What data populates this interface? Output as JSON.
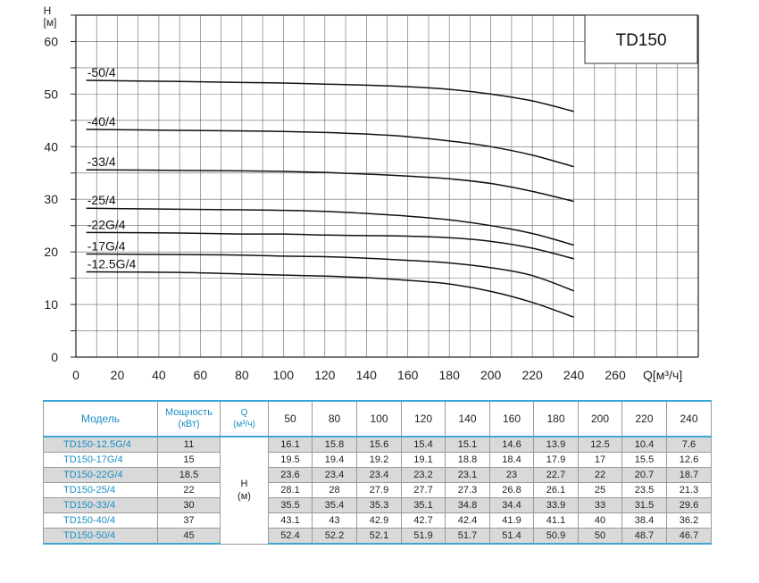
{
  "chart_data": {
    "type": "line",
    "title": "TD150",
    "y_axis_label_line1": "H",
    "y_axis_label_line2": "[м]",
    "x_axis_label": "Q[м³/ч]",
    "x_ticks": [
      0,
      20,
      40,
      60,
      80,
      100,
      120,
      140,
      160,
      180,
      200,
      220,
      240,
      260
    ],
    "y_ticks": [
      0,
      10,
      20,
      30,
      40,
      50,
      60
    ],
    "xlim": [
      0,
      300
    ],
    "ylim": [
      0,
      65
    ],
    "grid": true,
    "series": [
      {
        "name": "-50/4",
        "x": [
          50,
          80,
          100,
          120,
          140,
          160,
          180,
          200,
          220,
          240
        ],
        "y": [
          52.4,
          52.2,
          52.1,
          51.9,
          51.7,
          51.4,
          50.9,
          50,
          48.7,
          46.7
        ],
        "start_y": 52.6
      },
      {
        "name": "-40/4",
        "x": [
          50,
          80,
          100,
          120,
          140,
          160,
          180,
          200,
          220,
          240
        ],
        "y": [
          43.1,
          43,
          42.9,
          42.7,
          42.4,
          41.9,
          41.1,
          40,
          38.4,
          36.2
        ],
        "start_y": 43.3
      },
      {
        "name": "-33/4",
        "x": [
          50,
          80,
          100,
          120,
          140,
          160,
          180,
          200,
          220,
          240
        ],
        "y": [
          35.5,
          35.4,
          35.3,
          35.1,
          34.8,
          34.4,
          33.9,
          33,
          31.5,
          29.6
        ],
        "start_y": 35.6
      },
      {
        "name": "-25/4",
        "x": [
          50,
          80,
          100,
          120,
          140,
          160,
          180,
          200,
          220,
          240
        ],
        "y": [
          28.1,
          28,
          27.9,
          27.7,
          27.3,
          26.8,
          26.1,
          25,
          23.5,
          21.3
        ],
        "start_y": 28.3
      },
      {
        "name": "-22G/4",
        "x": [
          50,
          80,
          100,
          120,
          140,
          160,
          180,
          200,
          220,
          240
        ],
        "y": [
          23.6,
          23.4,
          23.4,
          23.2,
          23.1,
          23,
          22.7,
          22,
          20.7,
          18.7
        ],
        "start_y": 23.7
      },
      {
        "name": "-17G/4",
        "x": [
          50,
          80,
          100,
          120,
          140,
          160,
          180,
          200,
          220,
          240
        ],
        "y": [
          19.5,
          19.4,
          19.2,
          19.1,
          18.8,
          18.4,
          17.9,
          17,
          15.5,
          12.6
        ],
        "start_y": 19.6
      },
      {
        "name": "-12.5G/4",
        "x": [
          50,
          80,
          100,
          120,
          140,
          160,
          180,
          200,
          220,
          240
        ],
        "y": [
          16.1,
          15.8,
          15.6,
          15.4,
          15.1,
          14.6,
          13.9,
          12.5,
          10.4,
          7.6
        ],
        "start_y": 16.2
      }
    ]
  },
  "table": {
    "header": {
      "model": "Модель",
      "power_line1": "Мощность",
      "power_line2": "(кВт)",
      "q_line1": "Q",
      "q_line2": "(м³/ч)",
      "flows": [
        "50",
        "80",
        "100",
        "120",
        "140",
        "160",
        "180",
        "200",
        "220",
        "240"
      ]
    },
    "h_label_line1": "H",
    "h_label_line2": "(м)",
    "rows": [
      {
        "model": "TD150-12.5G/4",
        "power": "11",
        "values": [
          "16.1",
          "15.8",
          "15.6",
          "15.4",
          "15.1",
          "14.6",
          "13.9",
          "12.5",
          "10.4",
          "7.6"
        ]
      },
      {
        "model": "TD150-17G/4",
        "power": "15",
        "values": [
          "19.5",
          "19.4",
          "19.2",
          "19.1",
          "18.8",
          "18.4",
          "17.9",
          "17",
          "15.5",
          "12.6"
        ]
      },
      {
        "model": "TD150-22G/4",
        "power": "18.5",
        "values": [
          "23.6",
          "23.4",
          "23.4",
          "23.2",
          "23.1",
          "23",
          "22.7",
          "22",
          "20.7",
          "18.7"
        ]
      },
      {
        "model": "TD150-25/4",
        "power": "22",
        "values": [
          "28.1",
          "28",
          "27.9",
          "27.7",
          "27.3",
          "26.8",
          "26.1",
          "25",
          "23.5",
          "21.3"
        ]
      },
      {
        "model": "TD150-33/4",
        "power": "30",
        "values": [
          "35.5",
          "35.4",
          "35.3",
          "35.1",
          "34.8",
          "34.4",
          "33.9",
          "33",
          "31.5",
          "29.6"
        ]
      },
      {
        "model": "TD150-40/4",
        "power": "37",
        "values": [
          "43.1",
          "43",
          "42.9",
          "42.7",
          "42.4",
          "41.9",
          "41.1",
          "40",
          "38.4",
          "36.2"
        ]
      },
      {
        "model": "TD150-50/4",
        "power": "45",
        "values": [
          "52.4",
          "52.2",
          "52.1",
          "51.9",
          "51.7",
          "51.4",
          "50.9",
          "50",
          "48.7",
          "46.7"
        ]
      }
    ]
  },
  "colors": {
    "accent": "#3aa7d3",
    "model_text": "#1a8fc4",
    "row_shade": "#d9d9d9",
    "curve": "#111111",
    "grid": "#666666"
  }
}
